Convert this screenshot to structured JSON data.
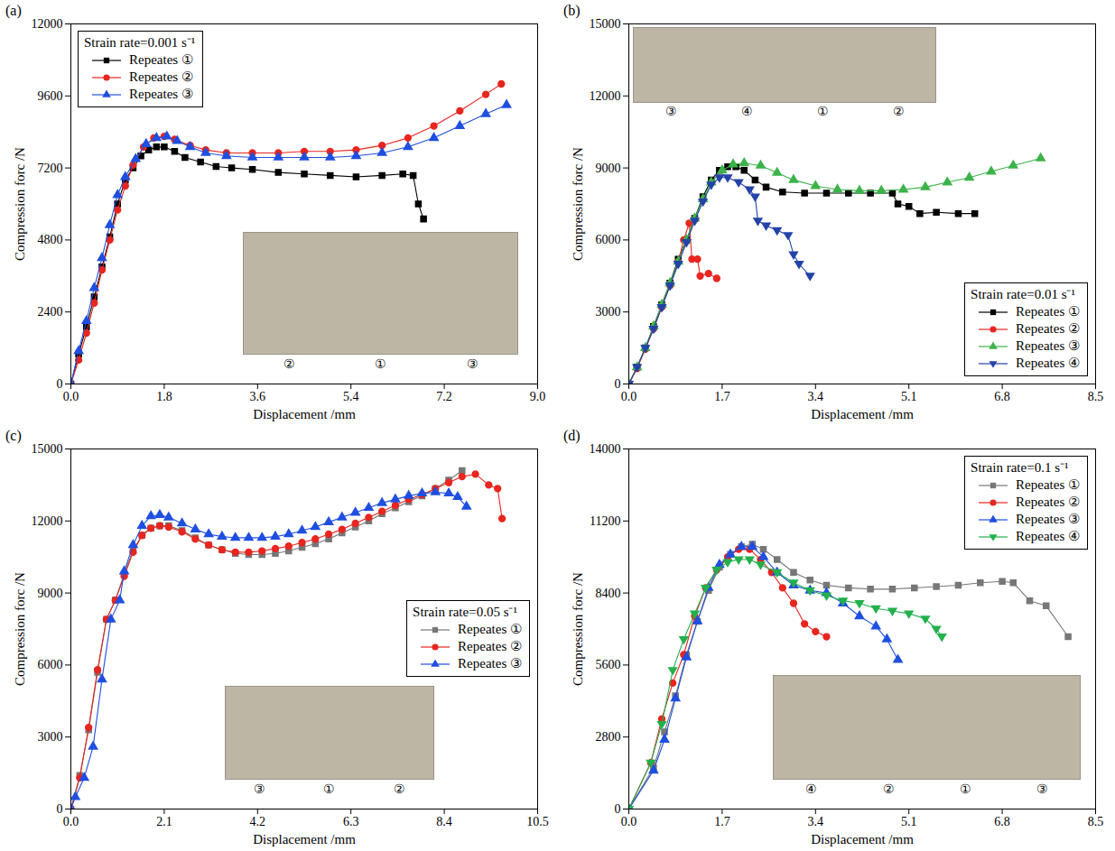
{
  "chart_data": [
    {
      "type": "line",
      "title": "(a)",
      "x_label": "Displacement /mm",
      "y_label": "Compression forc /N",
      "legend_title": "Strain rate=0.001 s⁻¹",
      "legend": "top-left",
      "grid": false,
      "photo_labels": [
        "②",
        "①",
        "③"
      ],
      "xlim": [
        0,
        9
      ],
      "xticks": [
        {
          "value": 0,
          "label": "0.0"
        },
        1.8,
        3.6,
        5.4,
        7.2,
        {
          "value": 9,
          "label": "9.0"
        }
      ],
      "ylim": [
        0,
        12000
      ],
      "yticks": [
        0,
        2400,
        4800,
        7200,
        9600,
        12000
      ],
      "series": [
        {
          "name": "Repeates ①",
          "color": "#000000",
          "marker": "square",
          "x": [
            0,
            0.15,
            0.3,
            0.45,
            0.6,
            0.75,
            0.9,
            1.05,
            1.2,
            1.35,
            1.5,
            1.65,
            1.8,
            2.0,
            2.2,
            2.5,
            2.8,
            3.1,
            3.5,
            4.0,
            4.5,
            5.0,
            5.5,
            6.0,
            6.4,
            6.6,
            6.7,
            6.8
          ],
          "values": [
            0,
            1000,
            1900,
            2900,
            3900,
            4900,
            6000,
            6800,
            7200,
            7600,
            7800,
            7900,
            7900,
            7750,
            7550,
            7400,
            7250,
            7200,
            7150,
            7050,
            7000,
            6950,
            6900,
            6950,
            7000,
            6950,
            6000,
            5500
          ]
        },
        {
          "name": "Repeates ②",
          "color": "#e8251f",
          "marker": "circle",
          "x": [
            0,
            0.15,
            0.3,
            0.45,
            0.6,
            0.75,
            0.9,
            1.05,
            1.2,
            1.4,
            1.6,
            1.8,
            2.0,
            2.3,
            2.6,
            3.0,
            3.5,
            4.0,
            4.5,
            5.0,
            5.5,
            6.0,
            6.5,
            7.0,
            7.5,
            8.0,
            8.3
          ],
          "values": [
            0,
            800,
            1700,
            2700,
            3800,
            4800,
            5800,
            6600,
            7300,
            7900,
            8200,
            8250,
            8150,
            7950,
            7800,
            7700,
            7700,
            7700,
            7750,
            7750,
            7800,
            7950,
            8200,
            8600,
            9100,
            9650,
            10000
          ]
        },
        {
          "name": "Repeates ③",
          "color": "#1f4fe0",
          "marker": "triangle",
          "x": [
            0,
            0.15,
            0.3,
            0.45,
            0.6,
            0.75,
            0.9,
            1.05,
            1.25,
            1.45,
            1.65,
            1.85,
            2.05,
            2.3,
            2.6,
            3.0,
            3.5,
            4.0,
            4.5,
            5.0,
            5.5,
            6.0,
            6.5,
            7.0,
            7.5,
            8.0,
            8.4
          ],
          "values": [
            0,
            1100,
            2100,
            3200,
            4200,
            5300,
            6300,
            6900,
            7500,
            8000,
            8200,
            8250,
            8100,
            7900,
            7700,
            7600,
            7550,
            7550,
            7550,
            7550,
            7600,
            7700,
            7900,
            8200,
            8600,
            9000,
            9300
          ]
        }
      ]
    },
    {
      "type": "line",
      "title": "(b)",
      "x_label": "Displacement /mm",
      "y_label": "Compression forc /N",
      "legend_title": "Strain rate=0.01 s⁻¹",
      "legend": "bottom-right",
      "grid": false,
      "photo_labels": [
        "③",
        "④",
        "①",
        "②"
      ],
      "xlim": [
        0,
        8.5
      ],
      "xticks": [
        {
          "value": 0,
          "label": "0.0"
        },
        1.7,
        3.4,
        5.1,
        6.8,
        8.5
      ],
      "ylim": [
        0,
        15000
      ],
      "yticks": [
        0,
        3000,
        6000,
        9000,
        12000,
        15000
      ],
      "series": [
        {
          "name": "Repeates ①",
          "color": "#000000",
          "marker": "square",
          "x": [
            0,
            0.15,
            0.3,
            0.45,
            0.6,
            0.75,
            0.9,
            1.05,
            1.2,
            1.35,
            1.5,
            1.65,
            1.8,
            1.95,
            2.1,
            2.3,
            2.5,
            2.8,
            3.2,
            3.6,
            4.0,
            4.4,
            4.8,
            4.9,
            5.1,
            5.3,
            5.6,
            6.0,
            6.3
          ],
          "values": [
            0,
            700,
            1500,
            2400,
            3300,
            4200,
            5200,
            6000,
            6900,
            7800,
            8500,
            8900,
            9050,
            9050,
            8900,
            8500,
            8200,
            8000,
            7950,
            7950,
            7950,
            7950,
            7950,
            7500,
            7400,
            7100,
            7150,
            7100,
            7100
          ]
        },
        {
          "name": "Repeates ②",
          "color": "#e8251f",
          "marker": "circle",
          "x": [
            0,
            0.15,
            0.3,
            0.45,
            0.6,
            0.75,
            0.9,
            1.0,
            1.1,
            1.15,
            1.25,
            1.3,
            1.45,
            1.6
          ],
          "values": [
            0,
            650,
            1450,
            2300,
            3200,
            4100,
            5100,
            6000,
            6700,
            5200,
            5200,
            4500,
            4600,
            4400
          ]
        },
        {
          "name": "Repeates ③",
          "color": "#3cb34a",
          "marker": "triangle",
          "x": [
            0,
            0.15,
            0.3,
            0.45,
            0.6,
            0.75,
            0.9,
            1.05,
            1.2,
            1.35,
            1.5,
            1.7,
            1.9,
            2.1,
            2.4,
            2.7,
            3.0,
            3.4,
            3.8,
            4.2,
            4.6,
            5.0,
            5.4,
            5.8,
            6.2,
            6.6,
            7.0,
            7.5
          ],
          "values": [
            0,
            700,
            1500,
            2400,
            3300,
            4200,
            5100,
            6000,
            6900,
            7700,
            8400,
            8900,
            9150,
            9200,
            9100,
            8800,
            8500,
            8250,
            8100,
            8050,
            8050,
            8100,
            8200,
            8400,
            8600,
            8850,
            9100,
            9400
          ]
        },
        {
          "name": "Repeates ④",
          "color": "#2443a8",
          "marker": "triangle-down",
          "x": [
            0,
            0.15,
            0.3,
            0.45,
            0.6,
            0.75,
            0.9,
            1.05,
            1.2,
            1.35,
            1.5,
            1.65,
            1.8,
            2.0,
            2.2,
            2.3,
            2.35,
            2.5,
            2.7,
            2.9,
            3.0,
            3.1,
            3.3
          ],
          "values": [
            0,
            700,
            1500,
            2300,
            3200,
            4100,
            5000,
            5900,
            6800,
            7600,
            8300,
            8600,
            8600,
            8400,
            8100,
            7800,
            6800,
            6600,
            6400,
            6200,
            5400,
            5000,
            4500
          ]
        }
      ]
    },
    {
      "type": "line",
      "title": "(c)",
      "x_label": "Displacement /mm",
      "y_label": "Compression forc /N",
      "legend_title": "Strain rate=0.05 s⁻¹",
      "legend": "right",
      "grid": false,
      "photo_labels": [
        "③",
        "①",
        "②"
      ],
      "xlim": [
        0,
        10.5
      ],
      "xticks": [
        {
          "value": 0,
          "label": "0.0"
        },
        2.1,
        4.2,
        6.3,
        8.4,
        10.5
      ],
      "ylim": [
        0,
        15000
      ],
      "yticks": [
        0,
        3000,
        6000,
        9000,
        12000,
        15000
      ],
      "series": [
        {
          "name": "Repeates ①",
          "color": "#777777",
          "marker": "square",
          "x": [
            0,
            0.2,
            0.4,
            0.6,
            0.8,
            1.0,
            1.2,
            1.4,
            1.6,
            1.8,
            2.0,
            2.2,
            2.5,
            2.8,
            3.1,
            3.4,
            3.7,
            4.0,
            4.3,
            4.6,
            4.9,
            5.2,
            5.5,
            5.8,
            6.1,
            6.4,
            6.7,
            7.0,
            7.3,
            7.6,
            7.9,
            8.2,
            8.5,
            8.8
          ],
          "values": [
            0,
            1400,
            3300,
            5700,
            7900,
            8700,
            9800,
            10800,
            11400,
            11700,
            11800,
            11800,
            11600,
            11300,
            11000,
            10800,
            10650,
            10600,
            10600,
            10650,
            10750,
            10900,
            11050,
            11250,
            11500,
            11750,
            12000,
            12300,
            12550,
            12800,
            13050,
            13350,
            13700,
            14100
          ]
        },
        {
          "name": "Repeates ②",
          "color": "#e8251f",
          "marker": "circle",
          "x": [
            0,
            0.2,
            0.4,
            0.6,
            0.8,
            1.0,
            1.2,
            1.4,
            1.6,
            1.8,
            2.0,
            2.2,
            2.5,
            2.8,
            3.1,
            3.4,
            3.7,
            4.0,
            4.3,
            4.6,
            4.9,
            5.2,
            5.5,
            5.8,
            6.1,
            6.4,
            6.7,
            7.0,
            7.3,
            7.6,
            7.9,
            8.2,
            8.5,
            8.8,
            9.1,
            9.4,
            9.6,
            9.7
          ],
          "values": [
            0,
            1300,
            3400,
            5800,
            7900,
            8700,
            9700,
            10700,
            11400,
            11700,
            11800,
            11750,
            11550,
            11250,
            11000,
            10800,
            10700,
            10700,
            10750,
            10850,
            10950,
            11100,
            11250,
            11450,
            11650,
            11900,
            12150,
            12400,
            12650,
            12900,
            13100,
            13350,
            13600,
            13850,
            13950,
            13500,
            13350,
            12100
          ]
        },
        {
          "name": "Repeates ③",
          "color": "#1f4fe0",
          "marker": "triangle",
          "x": [
            0,
            0.1,
            0.3,
            0.5,
            0.7,
            0.9,
            1.1,
            1.2,
            1.4,
            1.6,
            1.8,
            2.0,
            2.2,
            2.5,
            2.8,
            3.1,
            3.4,
            3.7,
            4.0,
            4.3,
            4.6,
            4.9,
            5.2,
            5.5,
            5.8,
            6.1,
            6.4,
            6.7,
            7.0,
            7.3,
            7.6,
            7.9,
            8.2,
            8.5,
            8.7,
            8.9
          ],
          "values": [
            0,
            500,
            1300,
            2600,
            5400,
            7900,
            8700,
            9900,
            11000,
            11800,
            12200,
            12250,
            12150,
            11900,
            11650,
            11450,
            11350,
            11300,
            11300,
            11300,
            11350,
            11450,
            11600,
            11750,
            11950,
            12150,
            12350,
            12550,
            12750,
            12900,
            13050,
            13150,
            13200,
            13150,
            13000,
            12600
          ]
        }
      ]
    },
    {
      "type": "line",
      "title": "(d)",
      "x_label": "Displacement /mm",
      "y_label": "Compression forc /N",
      "legend_title": "Strain rate=0.1 s⁻¹",
      "legend": "top-right",
      "grid": false,
      "photo_labels": [
        "④",
        "②",
        "①",
        "③"
      ],
      "xlim": [
        0,
        8.5
      ],
      "xticks": [
        {
          "value": 0,
          "label": "0.0"
        },
        1.7,
        3.4,
        5.1,
        6.8,
        8.5
      ],
      "ylim": [
        0,
        14000
      ],
      "yticks": [
        0,
        2800,
        5600,
        8400,
        11200,
        14000
      ],
      "series": [
        {
          "name": "Repeates ①",
          "color": "#777777",
          "marker": "square",
          "x": [
            0,
            0.45,
            0.65,
            0.85,
            1.05,
            1.25,
            1.45,
            1.65,
            1.85,
            2.05,
            2.25,
            2.45,
            2.7,
            3.0,
            3.3,
            3.6,
            4.0,
            4.4,
            4.8,
            5.2,
            5.6,
            6.0,
            6.4,
            6.8,
            7.0,
            7.3,
            7.6,
            8.0
          ],
          "values": [
            0,
            1600,
            3000,
            4400,
            6000,
            7300,
            8500,
            9400,
            9900,
            10200,
            10300,
            10100,
            9700,
            9200,
            8900,
            8700,
            8600,
            8550,
            8550,
            8600,
            8650,
            8700,
            8800,
            8850,
            8800,
            8100,
            7900,
            6700
          ]
        },
        {
          "name": "Repeates ②",
          "color": "#e8251f",
          "marker": "circle",
          "x": [
            0,
            0.4,
            0.6,
            0.8,
            1.0,
            1.2,
            1.4,
            1.6,
            1.8,
            2.0,
            2.2,
            2.4,
            2.6,
            2.8,
            3.0,
            3.2,
            3.4,
            3.6
          ],
          "values": [
            0,
            1800,
            3500,
            4900,
            6000,
            7500,
            8600,
            9300,
            9800,
            10100,
            10100,
            9700,
            9200,
            8600,
            8000,
            7200,
            6900,
            6700
          ]
        },
        {
          "name": "Repeates ③",
          "color": "#1f4fe0",
          "marker": "triangle",
          "x": [
            0,
            0.45,
            0.65,
            0.85,
            1.05,
            1.25,
            1.45,
            1.65,
            1.85,
            2.05,
            2.25,
            2.45,
            2.7,
            3.0,
            3.3,
            3.6,
            3.9,
            4.2,
            4.5,
            4.7,
            4.9
          ],
          "values": [
            0,
            1500,
            2700,
            4300,
            5900,
            7300,
            8600,
            9500,
            9900,
            10200,
            10200,
            9800,
            9200,
            8700,
            8500,
            8400,
            8000,
            7500,
            7100,
            6600,
            5800
          ]
        },
        {
          "name": "Repeates ④",
          "color": "#22b14c",
          "marker": "triangle-down",
          "x": [
            0,
            0.4,
            0.6,
            0.8,
            1.0,
            1.2,
            1.4,
            1.6,
            1.8,
            2.0,
            2.2,
            2.4,
            2.7,
            3.0,
            3.3,
            3.6,
            3.9,
            4.2,
            4.5,
            4.8,
            5.1,
            5.4,
            5.6,
            5.7
          ],
          "values": [
            0,
            1800,
            3300,
            5400,
            6600,
            7600,
            8600,
            9300,
            9600,
            9700,
            9700,
            9500,
            9200,
            8800,
            8500,
            8300,
            8100,
            8000,
            7800,
            7700,
            7600,
            7400,
            7000,
            6700
          ]
        }
      ]
    }
  ]
}
